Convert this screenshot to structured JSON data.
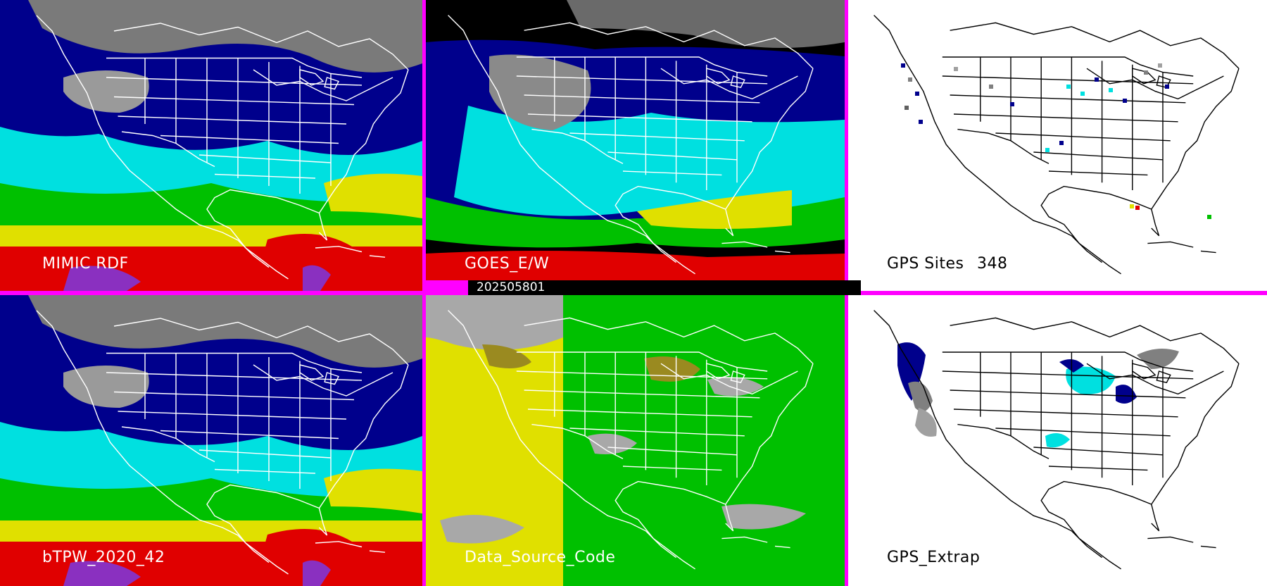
{
  "panels": [
    {
      "id": "mimic",
      "label": "MIMIC RDF"
    },
    {
      "id": "goes",
      "label": "GOES_E/W"
    },
    {
      "id": "gps_sites",
      "label": "GPS Sites",
      "count": "348"
    },
    {
      "id": "btpw",
      "label": "bTPW_2020_42"
    },
    {
      "id": "source",
      "label": "Data_Source_Code"
    },
    {
      "id": "gps_extrap",
      "label": "GPS_Extrap"
    }
  ],
  "timestamp": "202505801",
  "colors": {
    "border": "#ff00ff",
    "ocean_dry": "#00008c",
    "moist": "#00e0e0",
    "wetter": "#00c000",
    "wet": "#e0e000",
    "very_wet": "#e00000",
    "land_gray": "#9a9a9a",
    "source_yellow": "#e0e000",
    "source_green": "#00c000",
    "source_gray": "#a8a8a8",
    "source_olive": "#9a8a20"
  },
  "map_region": "North America"
}
